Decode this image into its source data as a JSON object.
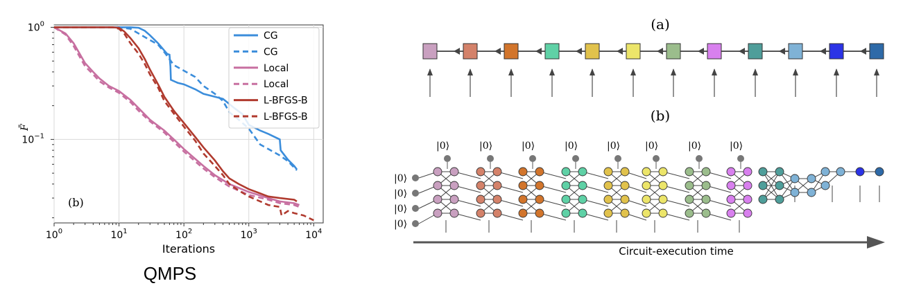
{
  "chart_data": {
    "type": "line",
    "xscale": "log",
    "yscale": "log",
    "xlim": [
      1,
      14000
    ],
    "ylim": [
      0.018,
      1.05
    ],
    "xlabel": "Iterations",
    "ylabel": "F̄",
    "panel_label": "(b)",
    "legend_position": "top-right",
    "grid": true,
    "xticks": [
      {
        "v": 1,
        "base": "10",
        "exp": "0"
      },
      {
        "v": 10,
        "base": "10",
        "exp": "1"
      },
      {
        "v": 100,
        "base": "10",
        "exp": "2"
      },
      {
        "v": 1000,
        "base": "10",
        "exp": "3"
      },
      {
        "v": 10000,
        "base": "10",
        "exp": "4"
      }
    ],
    "yticks": [
      {
        "v": 1,
        "base": "10",
        "exp": "0"
      },
      {
        "v": 0.1,
        "base": "10",
        "exp": "−1"
      }
    ],
    "series": [
      {
        "name": "CG",
        "color": "#3b8ddb",
        "dash": false,
        "points": [
          [
            1,
            1.0
          ],
          [
            10,
            1.0
          ],
          [
            15,
            1.0
          ],
          [
            20,
            0.99
          ],
          [
            25,
            0.93
          ],
          [
            30,
            0.85
          ],
          [
            40,
            0.72
          ],
          [
            55,
            0.58
          ],
          [
            60,
            0.57
          ],
          [
            62,
            0.45
          ],
          [
            63,
            0.34
          ],
          [
            80,
            0.32
          ],
          [
            100,
            0.31
          ],
          [
            150,
            0.28
          ],
          [
            200,
            0.255
          ],
          [
            300,
            0.24
          ],
          [
            400,
            0.23
          ],
          [
            600,
            0.19
          ],
          [
            800,
            0.168
          ],
          [
            1000,
            0.135
          ],
          [
            1500,
            0.12
          ],
          [
            2000,
            0.112
          ],
          [
            3000,
            0.1
          ],
          [
            3100,
            0.08
          ],
          [
            4000,
            0.066
          ],
          [
            5000,
            0.058
          ],
          [
            5500,
            0.054
          ]
        ]
      },
      {
        "name": "CG",
        "color": "#3b8ddb",
        "dash": true,
        "points": [
          [
            1,
            1.0
          ],
          [
            10,
            1.0
          ],
          [
            15,
            0.97
          ],
          [
            20,
            0.88
          ],
          [
            30,
            0.77
          ],
          [
            40,
            0.7
          ],
          [
            50,
            0.6
          ],
          [
            70,
            0.46
          ],
          [
            100,
            0.41
          ],
          [
            150,
            0.36
          ],
          [
            200,
            0.3
          ],
          [
            300,
            0.255
          ],
          [
            400,
            0.22
          ],
          [
            500,
            0.175
          ],
          [
            700,
            0.15
          ],
          [
            1000,
            0.125
          ],
          [
            1500,
            0.09
          ],
          [
            2000,
            0.082
          ],
          [
            3000,
            0.072
          ],
          [
            4000,
            0.064
          ],
          [
            5000,
            0.056
          ],
          [
            5500,
            0.053
          ]
        ]
      },
      {
        "name": "Local",
        "color": "#c76fa0",
        "dash": false,
        "points": [
          [
            1,
            1.0
          ],
          [
            1.5,
            0.88
          ],
          [
            2,
            0.72
          ],
          [
            3,
            0.48
          ],
          [
            4,
            0.4
          ],
          [
            5,
            0.35
          ],
          [
            7,
            0.3
          ],
          [
            10,
            0.27
          ],
          [
            15,
            0.225
          ],
          [
            20,
            0.19
          ],
          [
            30,
            0.15
          ],
          [
            50,
            0.12
          ],
          [
            70,
            0.1
          ],
          [
            100,
            0.082
          ],
          [
            200,
            0.058
          ],
          [
            300,
            0.048
          ],
          [
            500,
            0.04
          ],
          [
            1000,
            0.034
          ],
          [
            2000,
            0.03
          ],
          [
            3000,
            0.028
          ],
          [
            5000,
            0.027
          ],
          [
            6000,
            0.026
          ]
        ]
      },
      {
        "name": "Local",
        "color": "#c76fa0",
        "dash": true,
        "points": [
          [
            1,
            1.0
          ],
          [
            1.5,
            0.86
          ],
          [
            2,
            0.68
          ],
          [
            3,
            0.45
          ],
          [
            4,
            0.38
          ],
          [
            5,
            0.33
          ],
          [
            7,
            0.29
          ],
          [
            10,
            0.26
          ],
          [
            15,
            0.215
          ],
          [
            20,
            0.18
          ],
          [
            30,
            0.145
          ],
          [
            50,
            0.115
          ],
          [
            70,
            0.095
          ],
          [
            100,
            0.078
          ],
          [
            200,
            0.055
          ],
          [
            300,
            0.046
          ],
          [
            500,
            0.038
          ],
          [
            1000,
            0.032
          ],
          [
            2000,
            0.029
          ],
          [
            3000,
            0.027
          ],
          [
            5000,
            0.026
          ],
          [
            6000,
            0.025
          ]
        ]
      },
      {
        "name": "L-BFGS-B",
        "color": "#b03a2e",
        "dash": false,
        "points": [
          [
            1,
            1.0
          ],
          [
            8,
            1.0
          ],
          [
            10,
            0.99
          ],
          [
            12,
            0.92
          ],
          [
            15,
            0.8
          ],
          [
            20,
            0.65
          ],
          [
            25,
            0.52
          ],
          [
            30,
            0.42
          ],
          [
            40,
            0.31
          ],
          [
            50,
            0.24
          ],
          [
            70,
            0.18
          ],
          [
            100,
            0.14
          ],
          [
            150,
            0.105
          ],
          [
            200,
            0.085
          ],
          [
            300,
            0.065
          ],
          [
            400,
            0.052
          ],
          [
            500,
            0.045
          ],
          [
            700,
            0.04
          ],
          [
            1000,
            0.036
          ],
          [
            1500,
            0.033
          ],
          [
            2000,
            0.031
          ],
          [
            3000,
            0.03
          ],
          [
            5000,
            0.029
          ],
          [
            5500,
            0.028
          ]
        ]
      },
      {
        "name": "L-BFGS-B",
        "color": "#b03a2e",
        "dash": true,
        "points": [
          [
            1,
            1.0
          ],
          [
            8,
            1.0
          ],
          [
            10,
            0.97
          ],
          [
            12,
            0.88
          ],
          [
            15,
            0.72
          ],
          [
            20,
            0.58
          ],
          [
            25,
            0.47
          ],
          [
            30,
            0.38
          ],
          [
            40,
            0.29
          ],
          [
            50,
            0.22
          ],
          [
            70,
            0.17
          ],
          [
            100,
            0.13
          ],
          [
            150,
            0.097
          ],
          [
            200,
            0.075
          ],
          [
            300,
            0.058
          ],
          [
            400,
            0.048
          ],
          [
            500,
            0.04
          ],
          [
            700,
            0.035
          ],
          [
            1000,
            0.031
          ],
          [
            1500,
            0.028
          ],
          [
            2000,
            0.026
          ],
          [
            3000,
            0.025
          ],
          [
            3200,
            0.021
          ],
          [
            4000,
            0.023
          ],
          [
            5000,
            0.022
          ],
          [
            7000,
            0.021
          ],
          [
            10000,
            0.019
          ]
        ]
      }
    ]
  },
  "caption": "QMPS",
  "diagram": {
    "label_a": "(a)",
    "label_b": "(b)",
    "ket": "|0⟩",
    "time_label": "Circuit-execution time",
    "mps_colors": [
      "#c9a0c0",
      "#d4826a",
      "#d2752c",
      "#5fd1a6",
      "#e1c24c",
      "#ece56a",
      "#9bbd8c",
      "#d880ee",
      "#4f9e9a",
      "#7fb2d6",
      "#2b33e6",
      "#2e6aa8"
    ]
  }
}
